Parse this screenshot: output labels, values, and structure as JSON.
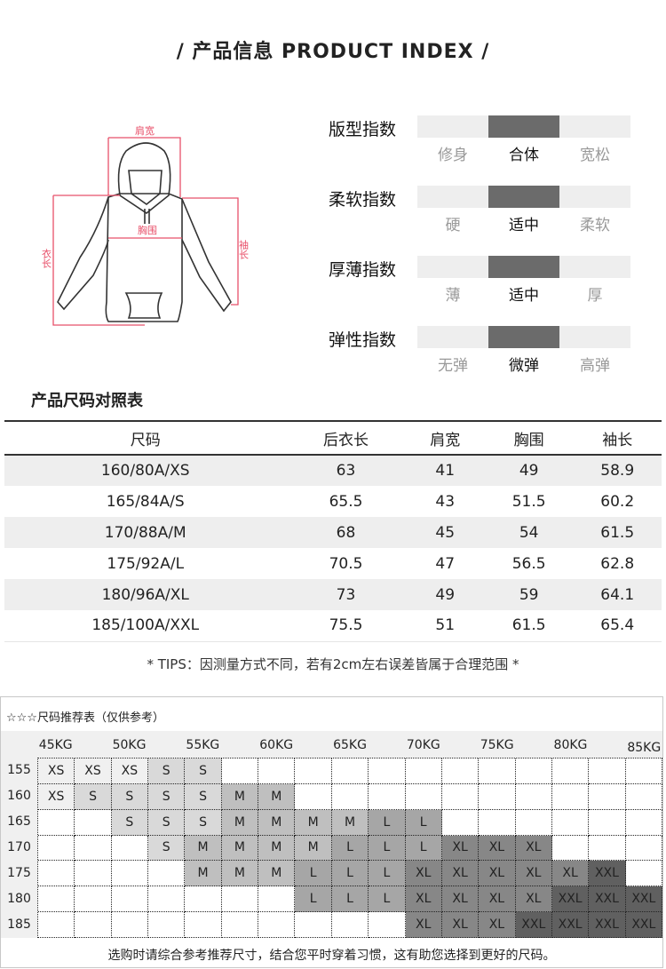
{
  "title": "/  产品信息 PRODUCT INDEX  /",
  "diagram": {
    "labels": {
      "shoulder": "肩宽",
      "chest": "胸围",
      "length": "衣长",
      "sleeve": "袖长"
    },
    "accent": "#e8506a"
  },
  "indices": [
    {
      "label": "版型指数",
      "options": [
        "修身",
        "合体",
        "宽松"
      ],
      "selected": 1
    },
    {
      "label": "柔软指数",
      "options": [
        "硬",
        "适中",
        "柔软"
      ],
      "selected": 1
    },
    {
      "label": "厚薄指数",
      "options": [
        "薄",
        "适中",
        "厚"
      ],
      "selected": 1
    },
    {
      "label": "弹性指数",
      "options": [
        "无弹",
        "微弹",
        "高弹"
      ],
      "selected": 1
    }
  ],
  "size_table": {
    "title": "产品尺码对照表",
    "headers": [
      "尺码",
      "后衣长",
      "肩宽",
      "胸围",
      "袖长"
    ],
    "rows": [
      [
        "160/80A/XS",
        "63",
        "41",
        "49",
        "58.9"
      ],
      [
        "165/84A/S",
        "65.5",
        "43",
        "51.5",
        "60.2"
      ],
      [
        "170/88A/M",
        "68",
        "45",
        "54",
        "61.5"
      ],
      [
        "175/92A/L",
        "70.5",
        "47",
        "56.5",
        "62.8"
      ],
      [
        "180/96A/XL",
        "73",
        "49",
        "59",
        "64.1"
      ],
      [
        "185/100A/XXL",
        "75.5",
        "51",
        "61.5",
        "65.4"
      ]
    ]
  },
  "tips": "* TIPS：因测量方式不同，若有2cm左右误差皆属于合理范围 *",
  "recommend": {
    "title": "☆☆☆尺码推荐表（仅供参考）",
    "weights": [
      "45KG",
      "50KG",
      "55KG",
      "60KG",
      "65KG",
      "70KG",
      "75KG",
      "80KG",
      "85KG"
    ],
    "heights": [
      "155",
      "160",
      "165",
      "170",
      "175",
      "180",
      "185"
    ],
    "grid": [
      [
        "XS",
        "XS",
        "XS",
        "S",
        "S",
        "",
        "",
        "",
        "",
        "",
        "",
        "",
        "",
        "",
        "",
        "",
        ""
      ],
      [
        "XS",
        "S",
        "S",
        "S",
        "S",
        "M",
        "M",
        "",
        "",
        "",
        "",
        "",
        "",
        "",
        "",
        "",
        ""
      ],
      [
        "",
        "",
        "S",
        "S",
        "S",
        "M",
        "M",
        "M",
        "M",
        "L",
        "L",
        "",
        "",
        "",
        "",
        "",
        ""
      ],
      [
        "",
        "",
        "",
        "S",
        "M",
        "M",
        "M",
        "M",
        "L",
        "L",
        "L",
        "XL",
        "XL",
        "XL",
        "",
        "",
        ""
      ],
      [
        "",
        "",
        "",
        "",
        "M",
        "M",
        "M",
        "L",
        "L",
        "L",
        "XL",
        "XL",
        "XL",
        "XL",
        "XL",
        "XXL",
        ""
      ],
      [
        "",
        "",
        "",
        "",
        "",
        "",
        "",
        "L",
        "L",
        "L",
        "XL",
        "XL",
        "XL",
        "XL",
        "XXL",
        "XXL",
        "XXL"
      ],
      [
        "",
        "",
        "",
        "",
        "",
        "",
        "",
        "",
        "",
        "",
        "XL",
        "XL",
        "XL",
        "XXL",
        "XXL",
        "XXL",
        "XXL"
      ]
    ],
    "colors": {
      "XS": "#f0f0f0",
      "S": "#d9d9d9",
      "M": "#bfbfbf",
      "L": "#a6a6a6",
      "XL": "#878787",
      "XXL": "#606060"
    },
    "footer": "选购时请综合参考推荐尺寸，结合您平时穿着习惯，这有助您选择到更好的尺码。"
  }
}
